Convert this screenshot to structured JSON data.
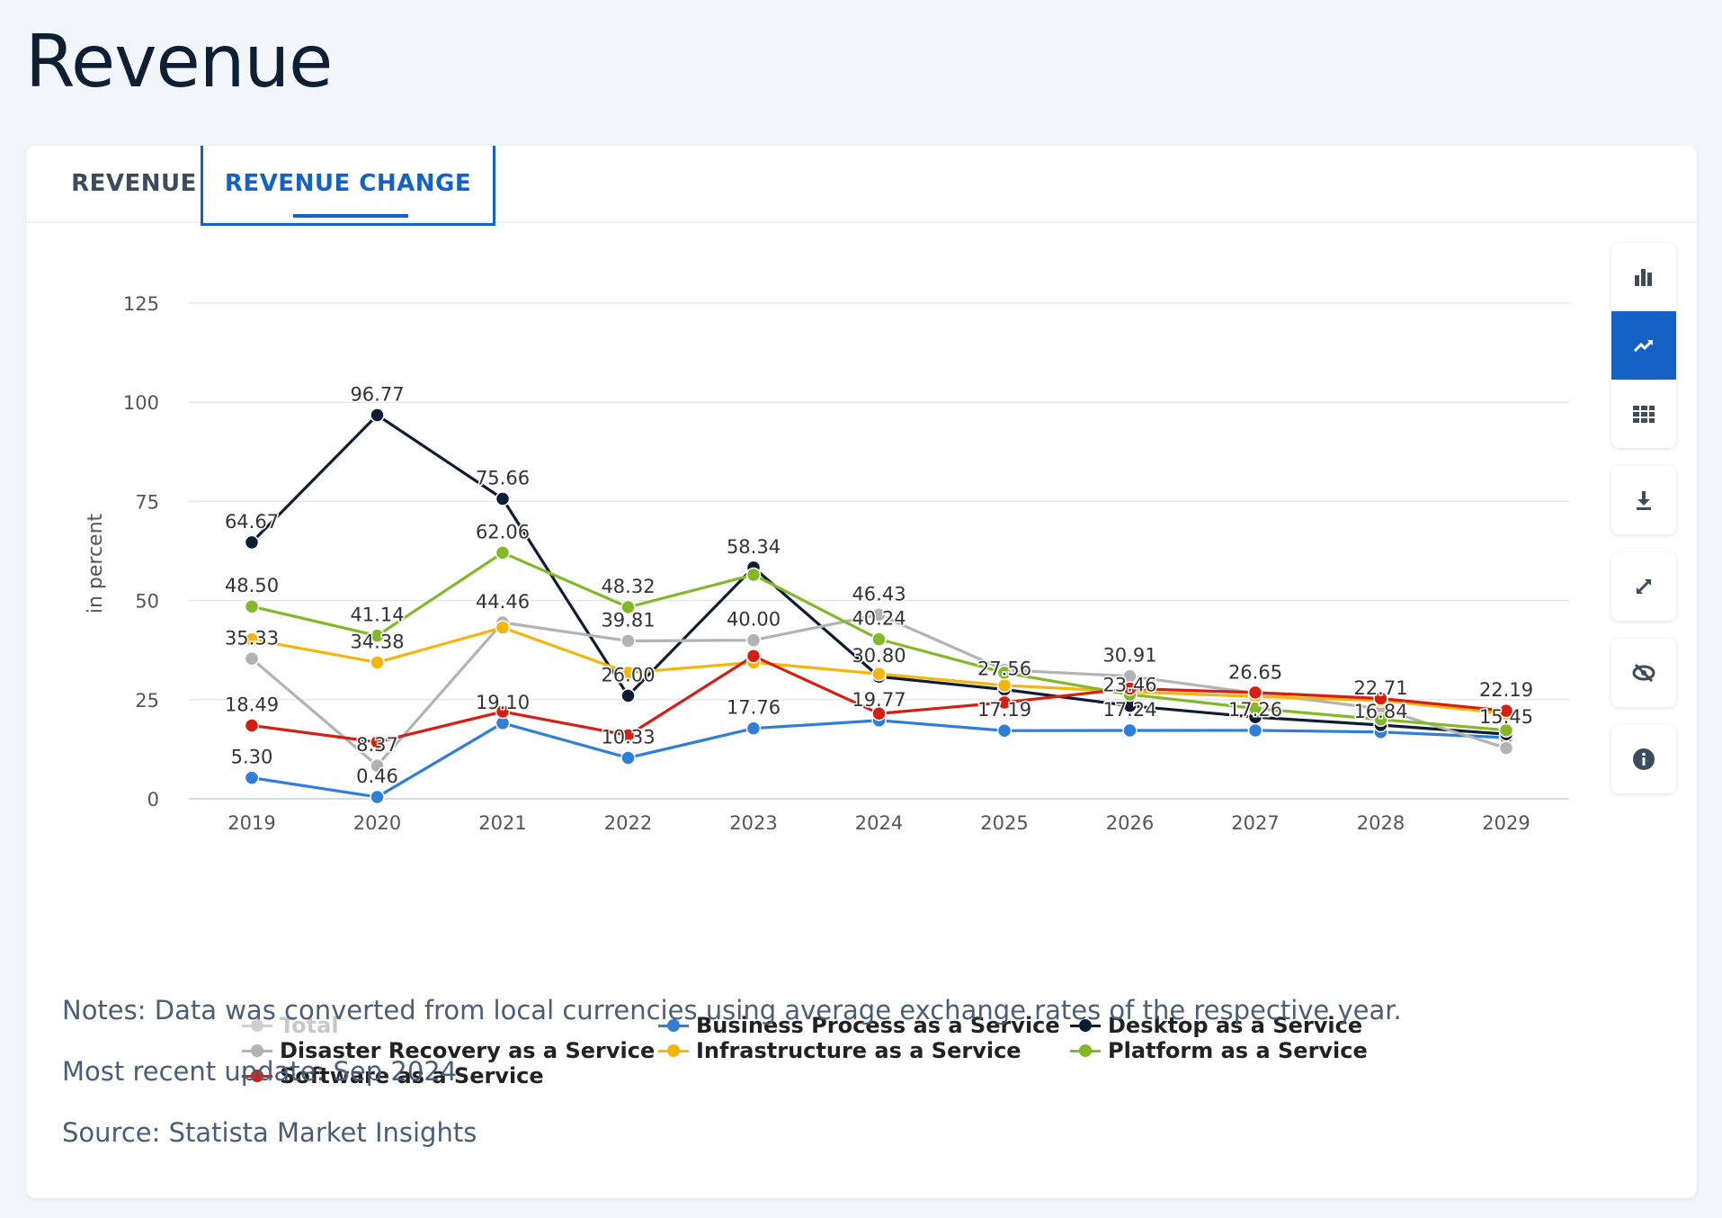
{
  "page": {
    "title": "Revenue"
  },
  "tabs": [
    {
      "label": "REVENUE",
      "active": false
    },
    {
      "label": "REVENUE CHANGE",
      "active": true
    }
  ],
  "toolbar": {
    "buttons": [
      {
        "name": "bar-chart-icon",
        "active": false
      },
      {
        "name": "line-chart-icon",
        "active": true
      },
      {
        "name": "table-icon",
        "active": false
      },
      {
        "name": "download-icon",
        "active": false
      },
      {
        "name": "fullscreen-icon",
        "active": false
      },
      {
        "name": "hide-icon",
        "active": false
      },
      {
        "name": "info-icon",
        "active": false
      }
    ]
  },
  "notes": {
    "note": "Notes: Data was converted from local currencies using average exchange rates of the respective year.",
    "update": "Most recent update: Sep 2024",
    "source": "Source: Statista Market Insights"
  },
  "chart_data": {
    "type": "line",
    "title": "",
    "xlabel": "",
    "ylabel": "in percent",
    "ylim": [
      0,
      125
    ],
    "yticks": [
      0,
      25,
      50,
      75,
      100,
      125
    ],
    "categories": [
      "2019",
      "2020",
      "2021",
      "2022",
      "2023",
      "2024",
      "2025",
      "2026",
      "2027",
      "2028",
      "2029"
    ],
    "legend_position": "bottom-left",
    "series": [
      {
        "name": "Total",
        "color": "#cfcfcf",
        "visible": false,
        "values": [
          null,
          null,
          null,
          null,
          null,
          null,
          null,
          null,
          null,
          null,
          null
        ]
      },
      {
        "name": "Business Process as a Service",
        "color": "#2f7ed8",
        "visible": true,
        "values": [
          5.3,
          0.46,
          19.1,
          10.33,
          17.76,
          19.77,
          17.19,
          17.24,
          17.26,
          16.84,
          15.45
        ],
        "labels": [
          "5.30",
          "0.46",
          "19.10",
          "10.33",
          "17.76",
          "19.77",
          "17.19",
          "17.24",
          "17.26",
          "16.84",
          "15.45"
        ]
      },
      {
        "name": "Desktop as a Service",
        "color": "#0e1d33",
        "visible": true,
        "values": [
          64.67,
          96.77,
          75.66,
          26.0,
          58.34,
          30.8,
          27.56,
          23.46,
          20.6,
          18.6,
          16.3
        ],
        "labels": [
          "64.67",
          "96.77",
          "75.66",
          "26.00",
          "58.34",
          "30.80",
          "27.56",
          "23.46",
          null,
          null,
          null
        ]
      },
      {
        "name": "Disaster Recovery as a Service",
        "color": "#b3b3b3",
        "visible": true,
        "values": [
          35.33,
          8.37,
          44.46,
          39.81,
          40.0,
          46.43,
          32.5,
          30.91,
          26.65,
          22.71,
          12.8
        ],
        "labels": [
          "35.33",
          "8.37",
          "44.46",
          "39.81",
          "40.00",
          "46.43",
          null,
          "30.91",
          "26.65",
          "22.71",
          null
        ]
      },
      {
        "name": "Infrastructure as a Service",
        "color": "#f5b50f",
        "visible": true,
        "values": [
          40.2,
          34.38,
          43.2,
          31.8,
          34.4,
          31.5,
          28.6,
          27.0,
          25.8,
          24.8,
          21.5
        ],
        "labels": [
          null,
          "34.38",
          null,
          null,
          null,
          null,
          null,
          null,
          null,
          null,
          null
        ]
      },
      {
        "name": "Platform as a Service",
        "color": "#83b82a",
        "visible": true,
        "values": [
          48.5,
          41.14,
          62.06,
          48.32,
          56.5,
          40.24,
          31.8,
          26.3,
          22.8,
          20.0,
          17.3
        ],
        "labels": [
          "48.50",
          "41.14",
          "62.06",
          "48.32",
          null,
          "40.24",
          null,
          null,
          null,
          null,
          null
        ]
      },
      {
        "name": "Software as a Service",
        "color": "#d51f12",
        "visible": true,
        "values": [
          18.49,
          14.3,
          22.0,
          16.0,
          36.0,
          21.5,
          24.3,
          27.8,
          26.8,
          25.3,
          22.19
        ],
        "labels": [
          "18.49",
          null,
          null,
          null,
          null,
          null,
          null,
          null,
          null,
          null,
          "22.19"
        ]
      }
    ]
  }
}
